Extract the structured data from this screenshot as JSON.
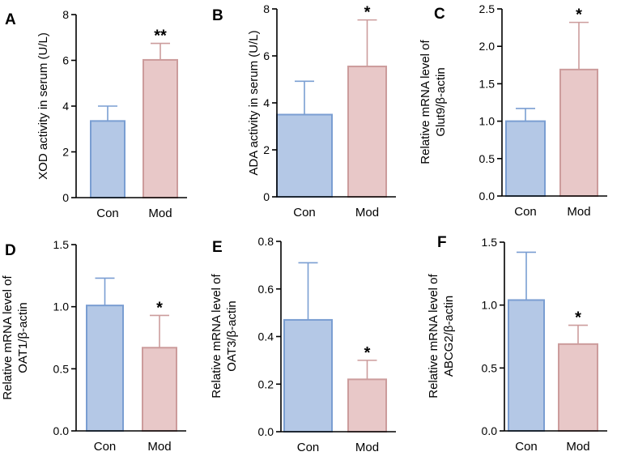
{
  "colors": {
    "con_fill": "#b4c8e6",
    "con_stroke": "#7a9ed2",
    "mod_fill": "#e8c8c8",
    "mod_stroke": "#cc9c9c"
  },
  "chart_data": [
    {
      "type": "bar",
      "panel": "A",
      "categories": [
        "Con",
        "Mod"
      ],
      "values": [
        3.35,
        6.02
      ],
      "errors": [
        0.65,
        0.72
      ],
      "significance": [
        "",
        "**"
      ],
      "ylabel": "XOD activity in serum (U/L)",
      "ylim": [
        0,
        8
      ],
      "yticks": [
        "0",
        "2",
        "4",
        "6",
        "8"
      ]
    },
    {
      "type": "bar",
      "panel": "B",
      "categories": [
        "Con",
        "Mod"
      ],
      "values": [
        3.5,
        5.55
      ],
      "errors": [
        1.42,
        1.98
      ],
      "significance": [
        "",
        "*"
      ],
      "ylabel": "ADA activity in serum (U/L)",
      "ylim": [
        0,
        8
      ],
      "yticks": [
        "0",
        "2",
        "4",
        "6",
        "8"
      ]
    },
    {
      "type": "bar",
      "panel": "C",
      "categories": [
        "Con",
        "Mod"
      ],
      "values": [
        1.0,
        1.69
      ],
      "errors": [
        0.17,
        0.63
      ],
      "significance": [
        "",
        "*"
      ],
      "ylabel": [
        "Relative mRNA level of",
        "Glut9/β-actin"
      ],
      "ylim": [
        0,
        2.5
      ],
      "yticks": [
        "0.0",
        "0.5",
        "1.0",
        "1.5",
        "2.0",
        "2.5"
      ]
    },
    {
      "type": "bar",
      "panel": "D",
      "categories": [
        "Con",
        "Mod"
      ],
      "values": [
        1.01,
        0.67
      ],
      "errors": [
        0.22,
        0.26
      ],
      "significance": [
        "",
        "*"
      ],
      "ylabel": [
        "Relative mRNA level of",
        "OAT1/β-actin"
      ],
      "ylim": [
        0,
        1.5
      ],
      "yticks": [
        "0.0",
        "0.5",
        "1.0",
        "1.5"
      ]
    },
    {
      "type": "bar",
      "panel": "E",
      "categories": [
        "Con",
        "Mod"
      ],
      "values": [
        0.47,
        0.22
      ],
      "errors": [
        0.24,
        0.08
      ],
      "significance": [
        "",
        "*"
      ],
      "ylabel": [
        "Relative mRNA level of",
        "OAT3/β-actin"
      ],
      "ylim": [
        0,
        0.8
      ],
      "yticks": [
        "0.0",
        "0.2",
        "0.4",
        "0.6",
        "0.8"
      ]
    },
    {
      "type": "bar",
      "panel": "F",
      "categories": [
        "Con",
        "Mod"
      ],
      "values": [
        1.04,
        0.69
      ],
      "errors": [
        0.38,
        0.15
      ],
      "significance": [
        "",
        "*"
      ],
      "ylabel": [
        "Relative mRNA level of",
        "ABCG2/β-actin"
      ],
      "ylim": [
        0,
        1.5
      ],
      "yticks": [
        "0.0",
        "0.5",
        "1.0",
        "1.5"
      ]
    }
  ]
}
